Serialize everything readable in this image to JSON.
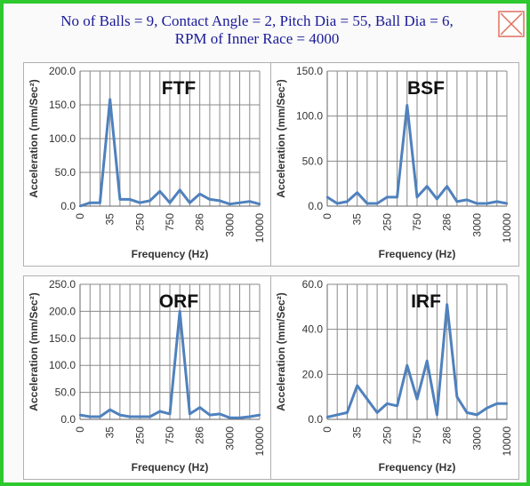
{
  "header": {
    "line1": "No of Balls = 9, Contact Angle = 2, Pitch Dia = 55, Ball Dia = 6,",
    "line2": "RPM of Inner Race = 4000"
  },
  "colors": {
    "frame": "#2ec92e",
    "series": "#4f81bd",
    "title": "#1a1a99",
    "close_icon": "#e07060"
  },
  "icons": {
    "close": "close-x-icon"
  },
  "chart_data": [
    {
      "type": "line",
      "title": "FTF",
      "xlabel": "Frequency (Hz)",
      "ylabel": "Acceleration (mm/Sec²)",
      "ylim": [
        0,
        200
      ],
      "yticks": [
        "0.0",
        "50.0",
        "100.0",
        "150.0",
        "200.0"
      ],
      "x_tick_labels": [
        "0",
        "35",
        "250",
        "750",
        "286",
        "3000",
        "10000"
      ],
      "grid": true,
      "values": [
        0,
        5,
        5,
        158,
        10,
        10,
        5,
        8,
        22,
        5,
        24,
        5,
        18,
        10,
        8,
        3,
        5,
        7,
        3
      ]
    },
    {
      "type": "line",
      "title": "BSF",
      "xlabel": "Frequency (Hz)",
      "ylabel": "Acceleration (mm/Sec²)",
      "ylim": [
        0,
        150
      ],
      "yticks": [
        "0.0",
        "50.0",
        "100.0",
        "150.0"
      ],
      "x_tick_labels": [
        "0",
        "35",
        "250",
        "750",
        "286",
        "3000",
        "10000"
      ],
      "grid": true,
      "values": [
        10,
        3,
        5,
        15,
        3,
        3,
        10,
        10,
        112,
        10,
        22,
        8,
        22,
        5,
        7,
        3,
        3,
        5,
        3
      ]
    },
    {
      "type": "line",
      "title": "ORF",
      "xlabel": "Frequency (Hz)",
      "ylabel": "Acceleration (mm/Sec²)",
      "ylim": [
        0,
        250
      ],
      "yticks": [
        "0.0",
        "50.0",
        "100.0",
        "150.0",
        "200.0",
        "250.0"
      ],
      "x_tick_labels": [
        "0",
        "35",
        "250",
        "750",
        "286",
        "3000",
        "10000"
      ],
      "grid": true,
      "values": [
        8,
        5,
        5,
        18,
        8,
        5,
        5,
        5,
        15,
        10,
        200,
        10,
        22,
        8,
        10,
        3,
        3,
        5,
        8
      ]
    },
    {
      "type": "line",
      "title": "IRF",
      "xlabel": "Frequency (Hz)",
      "ylabel": "Acceleration (mm/Sec²)",
      "ylim": [
        0,
        60
      ],
      "yticks": [
        "0.0",
        "20.0",
        "40.0",
        "60.0"
      ],
      "x_tick_labels": [
        "0",
        "35",
        "250",
        "750",
        "286",
        "3000",
        "10000"
      ],
      "grid": true,
      "values": [
        1,
        2,
        3,
        15,
        9,
        3,
        7,
        6,
        24,
        9,
        26,
        2,
        51,
        10,
        3,
        2,
        5,
        7,
        7
      ]
    }
  ]
}
